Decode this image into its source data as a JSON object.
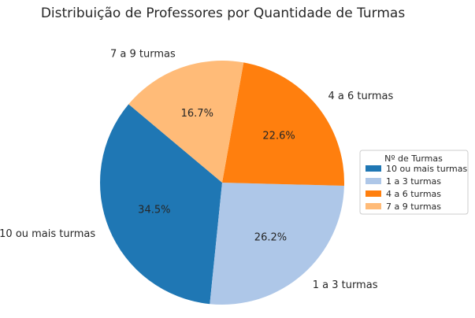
{
  "chart_data": {
    "type": "pie",
    "title": "Distribuição de Professores por Quantidade de Turmas",
    "categories": [
      "10 ou mais turmas",
      "1 a 3 turmas",
      "4 a 6 turmas",
      "7 a 9 turmas"
    ],
    "values": [
      34.5,
      26.2,
      22.6,
      16.7
    ],
    "pct_labels": [
      "34.5%",
      "26.2%",
      "22.6%",
      "16.7%"
    ],
    "colors": [
      "#1f77b4",
      "#aec7e8",
      "#ff7f0e",
      "#ffbb78"
    ],
    "legend": {
      "title": "Nº de Turmas",
      "entries": [
        "10 ou mais turmas",
        "1 a 3 turmas",
        "4 a 6 turmas",
        "7 a 9 turmas"
      ],
      "placement": "right"
    }
  }
}
